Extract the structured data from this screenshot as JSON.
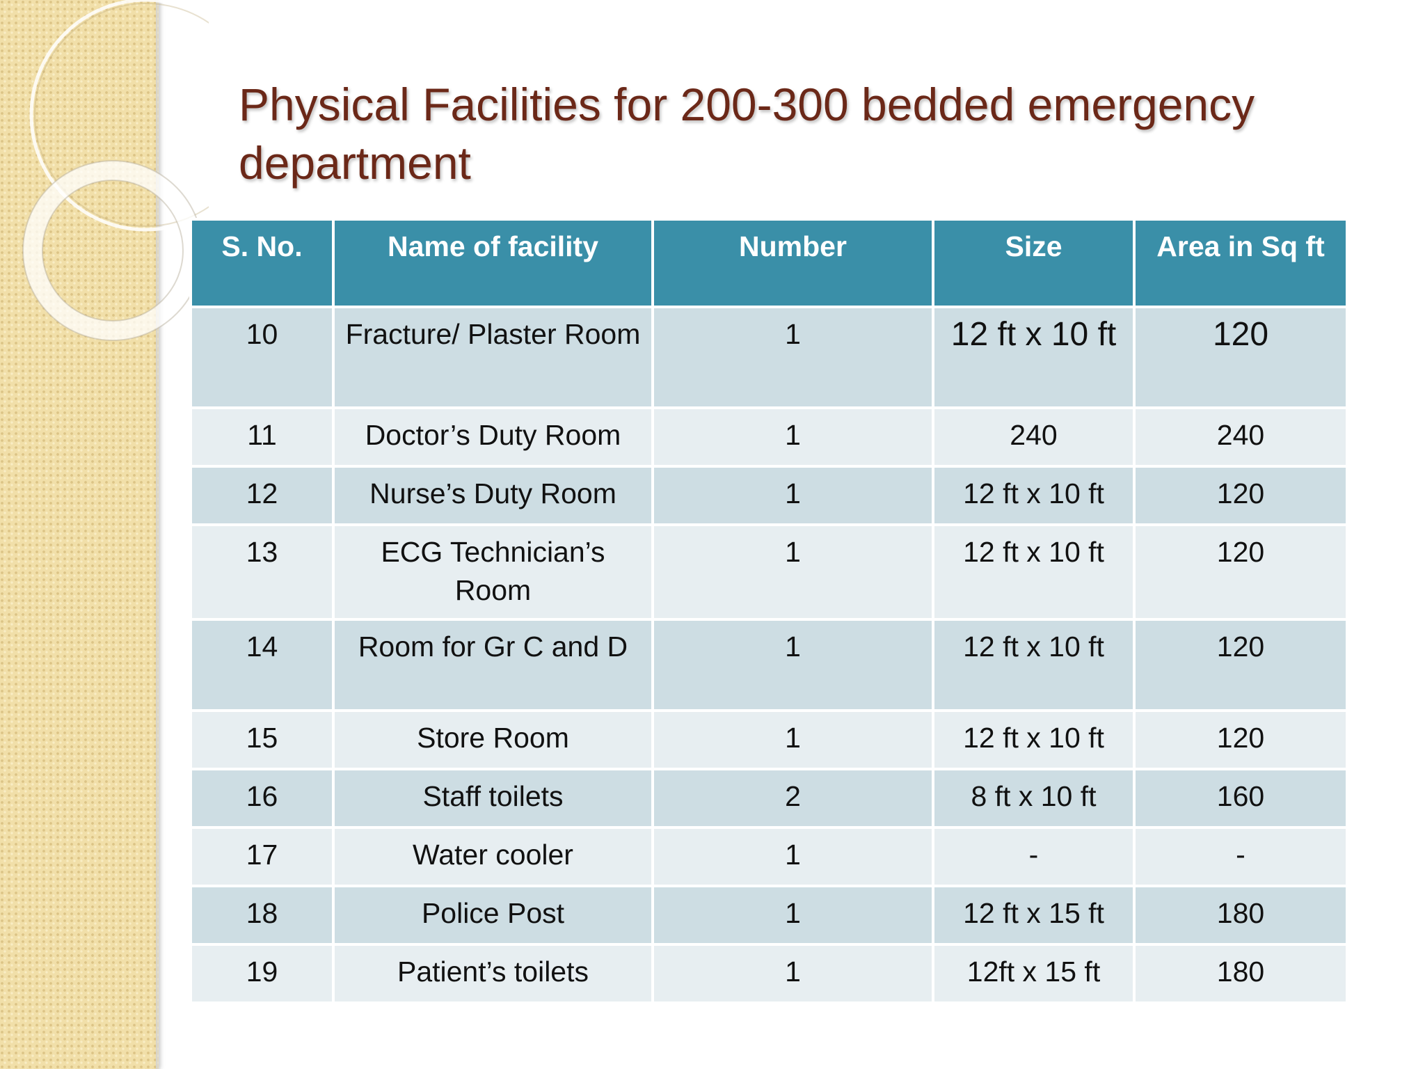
{
  "slide": {
    "title": "Physical Facilities for 200-300 bedded emergency department"
  },
  "table": {
    "headers": [
      "S. No.",
      "Name of facility",
      "Number",
      "Size",
      "Area in Sq ft"
    ],
    "rows": [
      [
        "10",
        "Fracture/ Plaster Room",
        "1",
        "12 ft x 10 ft",
        "120"
      ],
      [
        "11",
        "Doctor’s Duty Room",
        "1",
        "240",
        "240"
      ],
      [
        "12",
        "Nurse’s Duty Room",
        "1",
        "12 ft x 10 ft",
        "120"
      ],
      [
        "13",
        "ECG Technician’s Room",
        "1",
        "12 ft x 10 ft",
        "120"
      ],
      [
        "14",
        "Room for Gr C and D",
        "1",
        "12 ft x 10 ft",
        "120"
      ],
      [
        "15",
        "Store Room",
        "1",
        "12 ft x 10 ft",
        "120"
      ],
      [
        "16",
        "Staff toilets",
        "2",
        "8 ft x 10 ft",
        "160"
      ],
      [
        "17",
        "Water cooler",
        "1",
        "-",
        "-"
      ],
      [
        "18",
        "Police Post",
        "1",
        "12 ft x 15 ft",
        "180"
      ],
      [
        "19",
        "Patient’s toilets",
        "1",
        "12ft x 15 ft",
        "180"
      ]
    ]
  },
  "colors": {
    "header_bg": "#3a8fa8",
    "row_dark": "#cddde3",
    "row_light": "#e7eef1",
    "title": "#6b2818",
    "side_panel": "#f1dfa9"
  }
}
